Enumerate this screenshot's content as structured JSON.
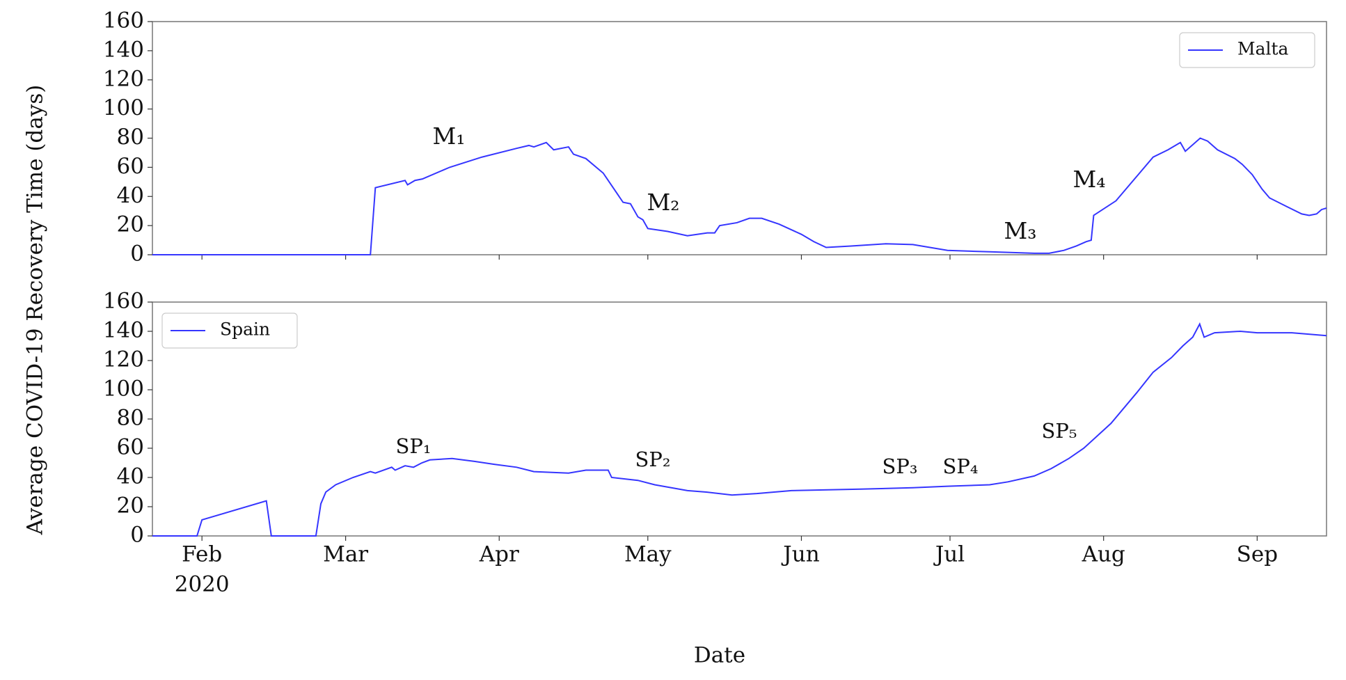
{
  "figure": {
    "ylabel": "Average COVID-19 Recovery Time (days)",
    "xlabel": "Date"
  },
  "chart_data": [
    {
      "type": "line",
      "legend": "upper right",
      "xlim": [
        22,
        259
      ],
      "xticks": [
        32,
        61,
        92,
        122,
        153,
        183,
        214,
        245
      ],
      "xtick_labels": false,
      "ylim": [
        0,
        160
      ],
      "yticks": [
        0,
        20,
        40,
        60,
        80,
        100,
        120,
        140,
        160
      ],
      "annotations": [
        "M₁",
        "M₂",
        "M₃",
        "M₄"
      ],
      "series": [
        {
          "name": "Malta",
          "color": "#3535ff",
          "x": [
            22,
            66,
            67,
            73,
            73.5,
            75,
            76.5,
            82,
            88.5,
            95.5,
            98,
            99,
            101.5,
            103,
            106,
            107,
            109.5,
            113,
            115,
            117,
            118.5,
            120,
            121,
            122,
            126,
            130,
            134,
            135.5,
            136.5,
            140,
            142.5,
            145,
            148.5,
            153,
            155.5,
            158,
            163,
            170,
            175.5,
            182.5,
            191,
            200,
            203,
            206,
            208.5,
            210.5,
            211.5,
            212,
            216.5,
            221,
            224,
            227,
            229.5,
            230.5,
            233.5,
            235,
            237,
            240.5,
            242,
            244,
            246,
            247.5,
            251,
            254,
            255.5,
            257,
            258,
            259
          ],
          "values": [
            0,
            0,
            46,
            51,
            48,
            51,
            52,
            60,
            67,
            73,
            75,
            74,
            77,
            72,
            74,
            69,
            66,
            56,
            46,
            36,
            35,
            26,
            24,
            18,
            16,
            13,
            15,
            15,
            20,
            22,
            25,
            25,
            21,
            14,
            9,
            5,
            6,
            7.5,
            7,
            3,
            2,
            1,
            1,
            3,
            6,
            9,
            10,
            27,
            37,
            55,
            67,
            72,
            77,
            71,
            80,
            78,
            72,
            66,
            62,
            55,
            45,
            39,
            33,
            28,
            27,
            28,
            31,
            32
          ]
        }
      ]
    },
    {
      "type": "line",
      "legend": "upper left",
      "xlim": [
        22,
        259
      ],
      "xticks": [
        {
          "value": 32,
          "label": "Feb",
          "sublabel": "2020"
        },
        {
          "value": 61,
          "label": "Mar"
        },
        {
          "value": 92,
          "label": "Apr"
        },
        {
          "value": 122,
          "label": "May"
        },
        {
          "value": 153,
          "label": "Jun"
        },
        {
          "value": 183,
          "label": "Jul"
        },
        {
          "value": 214,
          "label": "Aug"
        },
        {
          "value": 245,
          "label": "Sep"
        }
      ],
      "xtick_labels": true,
      "ylim": [
        0,
        160
      ],
      "yticks": [
        0,
        20,
        40,
        60,
        80,
        100,
        120,
        140,
        160
      ],
      "annotations": [
        "SP₁",
        "SP₂",
        "SP₃",
        "SP₄",
        "SP₅"
      ],
      "series": [
        {
          "name": "Spain",
          "color": "#3535ff",
          "x": [
            22,
            31,
            32,
            45,
            46,
            55,
            56,
            57,
            59,
            62.5,
            66,
            67,
            70.3,
            71,
            73,
            74.7,
            76.4,
            78,
            82.5,
            87,
            91,
            95.5,
            99,
            106,
            109.5,
            114,
            114.7,
            120,
            123.4,
            130,
            133.8,
            139,
            144,
            151,
            165,
            175.5,
            182.5,
            191,
            194.7,
            200,
            203.4,
            207,
            210,
            215.5,
            220.7,
            224,
            227.7,
            230,
            232,
            233.4,
            234.3,
            236.4,
            241.6,
            245,
            252,
            259
          ],
          "values": [
            0,
            0,
            11,
            24,
            0,
            0,
            22,
            30,
            35,
            40,
            44,
            43,
            47,
            45,
            48,
            47,
            50,
            52,
            53,
            51,
            49,
            47,
            44,
            43,
            45,
            45,
            40,
            38,
            35,
            31,
            30,
            28,
            29,
            31,
            32,
            33,
            34,
            35,
            37,
            41,
            46,
            53,
            60,
            77,
            98,
            112,
            122,
            130,
            136,
            145,
            136,
            139,
            140,
            139,
            139,
            137
          ]
        }
      ]
    }
  ]
}
